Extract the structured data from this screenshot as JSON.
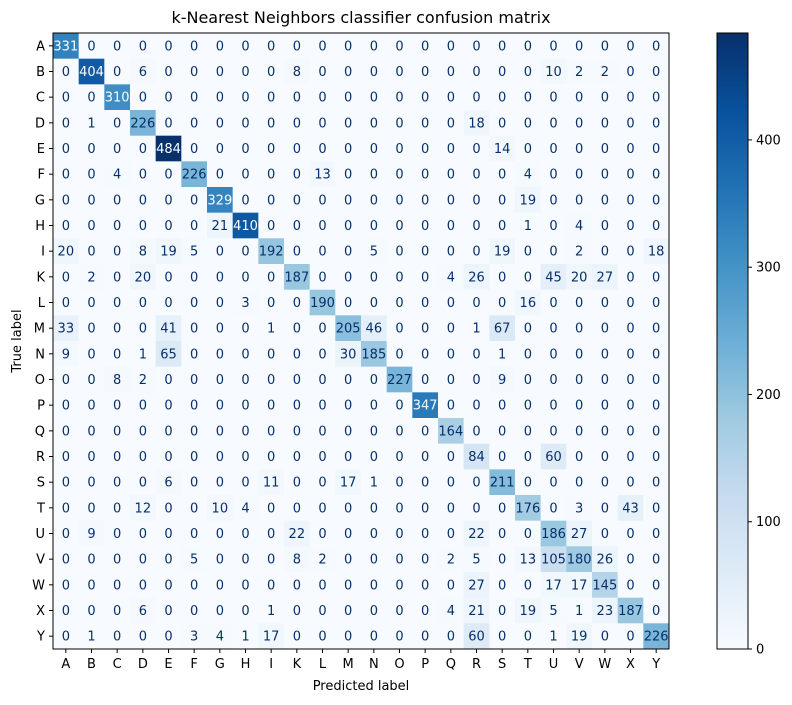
{
  "chart_data": {
    "type": "heatmap",
    "title": "k-Nearest Neighbors classifier confusion matrix",
    "xlabel": "Predicted label",
    "ylabel": "True label",
    "labels": [
      "A",
      "B",
      "C",
      "D",
      "E",
      "F",
      "G",
      "H",
      "I",
      "K",
      "L",
      "M",
      "N",
      "O",
      "P",
      "Q",
      "R",
      "S",
      "T",
      "U",
      "V",
      "W",
      "X",
      "Y"
    ],
    "matrix": [
      [
        331,
        0,
        0,
        0,
        0,
        0,
        0,
        0,
        0,
        0,
        0,
        0,
        0,
        0,
        0,
        0,
        0,
        0,
        0,
        0,
        0,
        0,
        0,
        0
      ],
      [
        0,
        404,
        0,
        6,
        0,
        0,
        0,
        0,
        0,
        8,
        0,
        0,
        0,
        0,
        0,
        0,
        0,
        0,
        0,
        10,
        2,
        2,
        0,
        0
      ],
      [
        0,
        0,
        310,
        0,
        0,
        0,
        0,
        0,
        0,
        0,
        0,
        0,
        0,
        0,
        0,
        0,
        0,
        0,
        0,
        0,
        0,
        0,
        0,
        0
      ],
      [
        0,
        1,
        0,
        226,
        0,
        0,
        0,
        0,
        0,
        0,
        0,
        0,
        0,
        0,
        0,
        0,
        18,
        0,
        0,
        0,
        0,
        0,
        0,
        0
      ],
      [
        0,
        0,
        0,
        0,
        484,
        0,
        0,
        0,
        0,
        0,
        0,
        0,
        0,
        0,
        0,
        0,
        0,
        14,
        0,
        0,
        0,
        0,
        0,
        0
      ],
      [
        0,
        0,
        4,
        0,
        0,
        226,
        0,
        0,
        0,
        0,
        13,
        0,
        0,
        0,
        0,
        0,
        0,
        0,
        4,
        0,
        0,
        0,
        0,
        0
      ],
      [
        0,
        0,
        0,
        0,
        0,
        0,
        329,
        0,
        0,
        0,
        0,
        0,
        0,
        0,
        0,
        0,
        0,
        0,
        19,
        0,
        0,
        0,
        0,
        0
      ],
      [
        0,
        0,
        0,
        0,
        0,
        0,
        21,
        410,
        0,
        0,
        0,
        0,
        0,
        0,
        0,
        0,
        0,
        0,
        1,
        0,
        4,
        0,
        0,
        0
      ],
      [
        20,
        0,
        0,
        8,
        19,
        5,
        0,
        0,
        192,
        0,
        0,
        0,
        5,
        0,
        0,
        0,
        0,
        19,
        0,
        0,
        2,
        0,
        0,
        18
      ],
      [
        0,
        2,
        0,
        20,
        0,
        0,
        0,
        0,
        0,
        187,
        0,
        0,
        0,
        0,
        0,
        4,
        26,
        0,
        0,
        45,
        20,
        27,
        0,
        0
      ],
      [
        0,
        0,
        0,
        0,
        0,
        0,
        0,
        3,
        0,
        0,
        190,
        0,
        0,
        0,
        0,
        0,
        0,
        0,
        16,
        0,
        0,
        0,
        0,
        0
      ],
      [
        33,
        0,
        0,
        0,
        41,
        0,
        0,
        0,
        1,
        0,
        0,
        205,
        46,
        0,
        0,
        0,
        1,
        67,
        0,
        0,
        0,
        0,
        0,
        0
      ],
      [
        9,
        0,
        0,
        1,
        65,
        0,
        0,
        0,
        0,
        0,
        0,
        30,
        185,
        0,
        0,
        0,
        0,
        1,
        0,
        0,
        0,
        0,
        0,
        0
      ],
      [
        0,
        0,
        8,
        2,
        0,
        0,
        0,
        0,
        0,
        0,
        0,
        0,
        0,
        227,
        0,
        0,
        0,
        9,
        0,
        0,
        0,
        0,
        0,
        0
      ],
      [
        0,
        0,
        0,
        0,
        0,
        0,
        0,
        0,
        0,
        0,
        0,
        0,
        0,
        0,
        347,
        0,
        0,
        0,
        0,
        0,
        0,
        0,
        0,
        0
      ],
      [
        0,
        0,
        0,
        0,
        0,
        0,
        0,
        0,
        0,
        0,
        0,
        0,
        0,
        0,
        0,
        164,
        0,
        0,
        0,
        0,
        0,
        0,
        0,
        0
      ],
      [
        0,
        0,
        0,
        0,
        0,
        0,
        0,
        0,
        0,
        0,
        0,
        0,
        0,
        0,
        0,
        0,
        84,
        0,
        0,
        60,
        0,
        0,
        0,
        0
      ],
      [
        0,
        0,
        0,
        0,
        6,
        0,
        0,
        0,
        11,
        0,
        0,
        17,
        1,
        0,
        0,
        0,
        0,
        211,
        0,
        0,
        0,
        0,
        0,
        0
      ],
      [
        0,
        0,
        0,
        12,
        0,
        0,
        10,
        4,
        0,
        0,
        0,
        0,
        0,
        0,
        0,
        0,
        0,
        0,
        176,
        0,
        3,
        0,
        43,
        0
      ],
      [
        0,
        9,
        0,
        0,
        0,
        0,
        0,
        0,
        0,
        22,
        0,
        0,
        0,
        0,
        0,
        0,
        22,
        0,
        0,
        186,
        27,
        0,
        0,
        0
      ],
      [
        0,
        0,
        0,
        0,
        0,
        5,
        0,
        0,
        0,
        8,
        2,
        0,
        0,
        0,
        0,
        2,
        5,
        0,
        13,
        105,
        180,
        26,
        0,
        0
      ],
      [
        0,
        0,
        0,
        0,
        0,
        0,
        0,
        0,
        0,
        0,
        0,
        0,
        0,
        0,
        0,
        0,
        27,
        0,
        0,
        17,
        17,
        145,
        0,
        0
      ],
      [
        0,
        0,
        0,
        6,
        0,
        0,
        0,
        0,
        1,
        0,
        0,
        0,
        0,
        0,
        0,
        4,
        21,
        0,
        19,
        5,
        1,
        23,
        187,
        0
      ],
      [
        0,
        1,
        0,
        0,
        0,
        3,
        4,
        1,
        17,
        0,
        0,
        0,
        0,
        0,
        0,
        0,
        60,
        0,
        0,
        1,
        19,
        0,
        0,
        226
      ]
    ],
    "colormap": "Blues",
    "vmin": 0,
    "vmax": 484,
    "colorbar_ticks": [
      0,
      100,
      200,
      300,
      400
    ],
    "grid": false
  }
}
